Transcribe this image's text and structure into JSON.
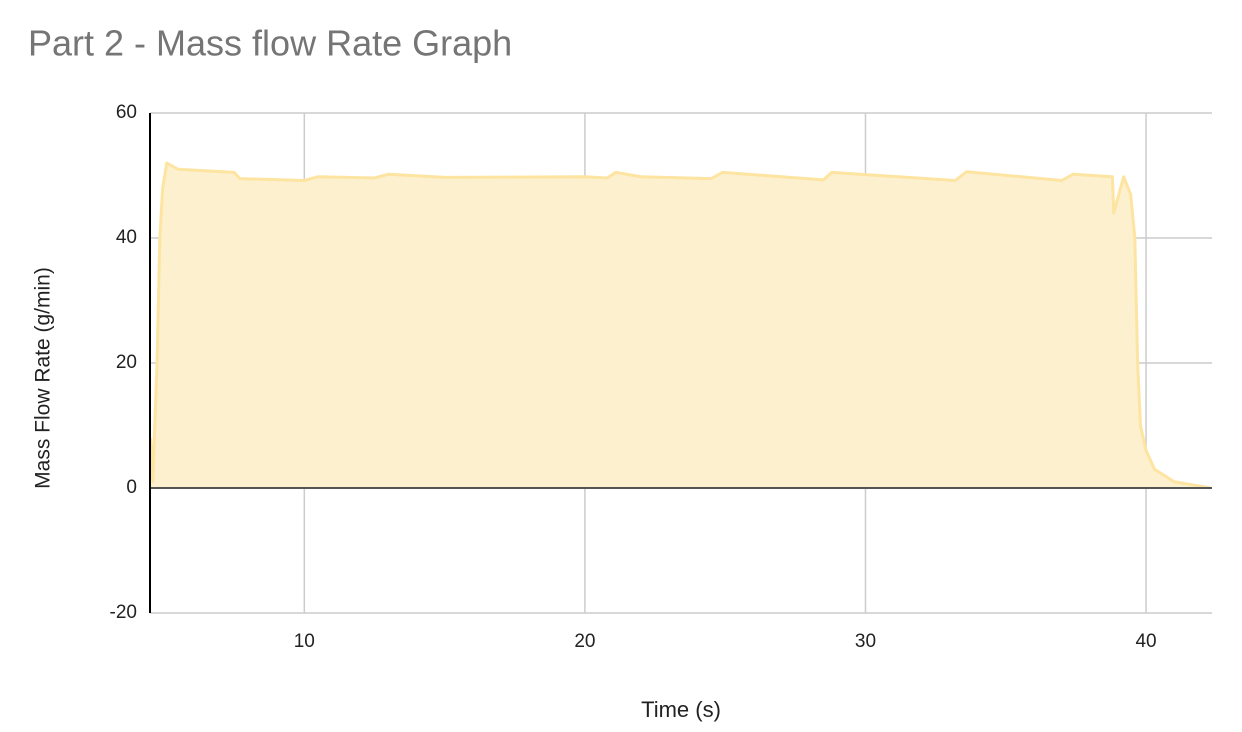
{
  "chart_data": {
    "type": "area",
    "title": "Part 2 - Mass flow Rate Graph",
    "x_label": "Time (s)",
    "y_label": "Mass Flow Rate (g/min)",
    "color": "#fde4a0",
    "fill": "#fcf0cf",
    "x": [
      4.52,
      4.6,
      4.75,
      4.85,
      4.95,
      5.1,
      5.3,
      5.5,
      7.5,
      7.7,
      10,
      10.5,
      12.5,
      13,
      15,
      20,
      20.8,
      21.1,
      22,
      24.5,
      24.9,
      28.5,
      28.8,
      33.2,
      33.6,
      37,
      37.4,
      38.8,
      38.85,
      39.2,
      39.45,
      39.6,
      39.7,
      39.8,
      40,
      40.3,
      41,
      42.3
    ],
    "values": [
      8,
      1,
      20,
      40,
      48,
      52,
      51.5,
      51,
      50.5,
      49.5,
      49.2,
      49.8,
      49.6,
      50.2,
      49.7,
      49.8,
      49.6,
      50.5,
      49.8,
      49.5,
      50.5,
      49.3,
      50.5,
      49.2,
      50.6,
      49.2,
      50.2,
      49.8,
      44,
      49.8,
      47,
      40,
      20,
      10,
      6,
      3,
      1,
      0
    ],
    "xlim": [
      4.5,
      42.35
    ],
    "ylim": [
      -20,
      60
    ],
    "xticks": [
      10,
      20,
      30,
      40
    ],
    "yticks": [
      -20,
      0,
      20,
      40,
      60
    ],
    "grid": true
  }
}
